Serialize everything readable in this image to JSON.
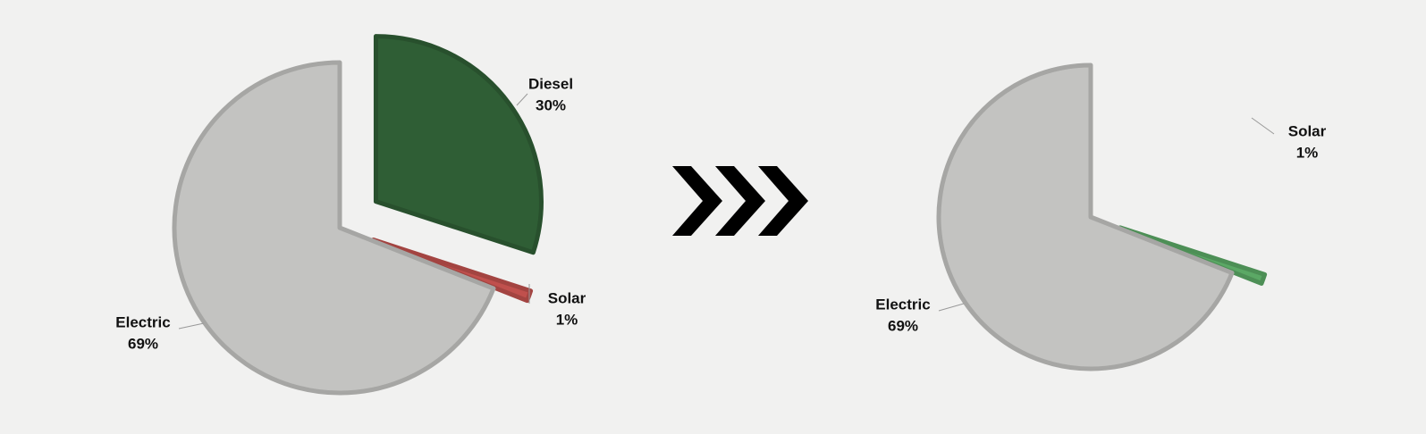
{
  "chart_data": [
    {
      "type": "pie",
      "categories": [
        "Diesel",
        "Solar",
        "Electric"
      ],
      "values": [
        30,
        1,
        69
      ],
      "value_labels": [
        "30%",
        "1%",
        "69%"
      ],
      "colors": [
        "#2f5e35",
        "#c0504d",
        "#c3c3c1"
      ]
    },
    {
      "type": "pie",
      "categories": [
        "Solar",
        "Electric"
      ],
      "values": [
        1,
        69
      ],
      "value_labels": [
        "1%",
        "69%"
      ],
      "colors": [
        "#5ba865",
        "#c3c3c1"
      ]
    }
  ]
}
